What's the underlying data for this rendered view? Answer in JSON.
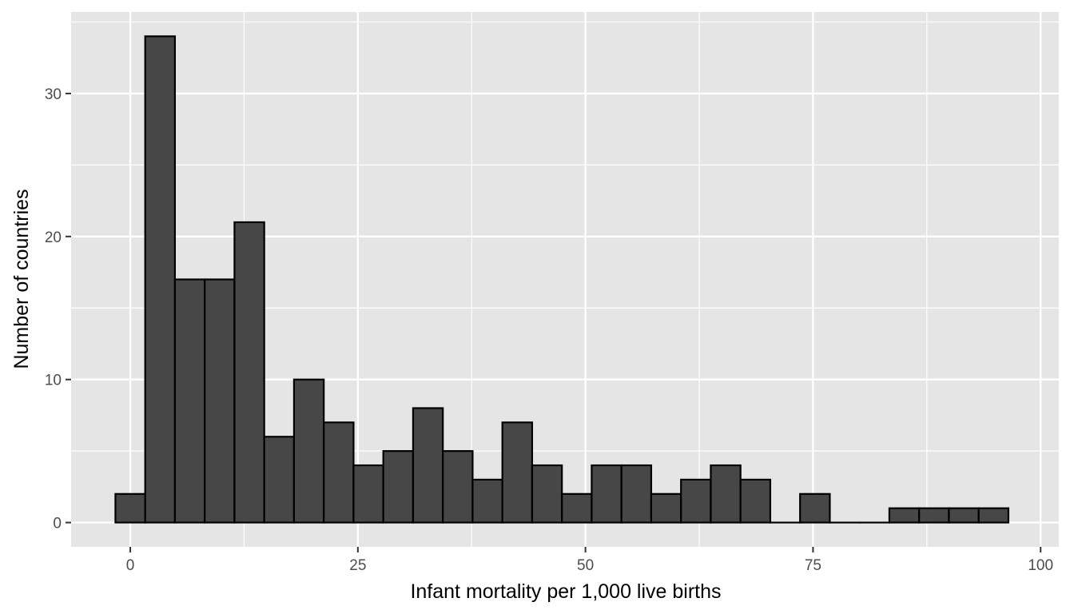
{
  "chart_data": {
    "type": "bar",
    "subtype": "histogram",
    "xlabel": "Infant mortality per 1,000 live births",
    "ylabel": "Number of countries",
    "xlim": [
      -6.5,
      102
    ],
    "ylim": [
      -1.7,
      35.7
    ],
    "x_ticks": [
      0,
      25,
      50,
      75,
      100
    ],
    "x_tick_labels": [
      "0",
      "25",
      "50",
      "75",
      "100"
    ],
    "y_ticks": [
      0,
      10,
      20,
      30
    ],
    "y_tick_labels": [
      "0",
      "10",
      "20",
      "30"
    ],
    "bin_width": 3.27,
    "bin_centers": [
      0,
      3.27,
      6.54,
      9.81,
      13.08,
      16.35,
      19.62,
      22.89,
      26.16,
      29.43,
      32.7,
      35.97,
      39.24,
      42.51,
      45.78,
      49.05,
      52.32,
      55.59,
      58.86,
      62.13,
      65.4,
      68.67,
      71.94,
      75.21,
      78.48,
      81.75,
      85.02,
      88.29,
      91.56,
      94.83
    ],
    "values": [
      2,
      34,
      17,
      17,
      21,
      6,
      10,
      7,
      4,
      5,
      8,
      5,
      3,
      7,
      4,
      2,
      4,
      4,
      2,
      3,
      4,
      3,
      0,
      2,
      0,
      0,
      1,
      1,
      1,
      1
    ],
    "bar_fill": "#474747",
    "bar_stroke": "#000000",
    "panel_background": "#e5e5e5",
    "grid": true,
    "grid_color": "#ffffff",
    "legend": "none"
  }
}
